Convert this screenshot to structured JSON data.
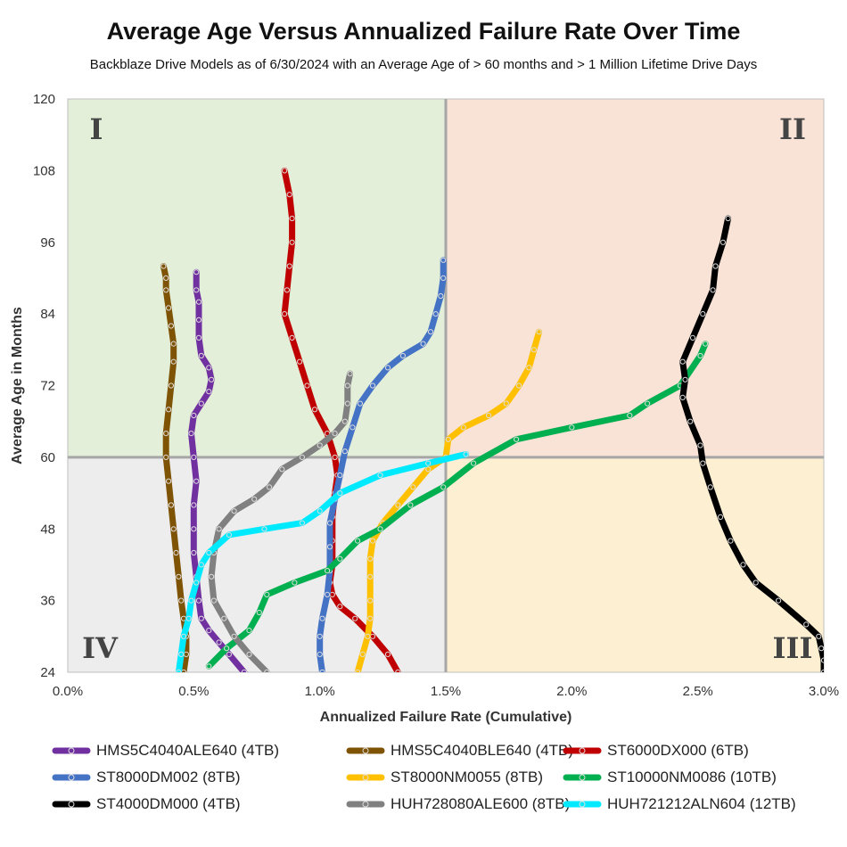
{
  "chart_data": {
    "type": "line",
    "title": "Average Age Versus  Annualized Failure Rate Over Time",
    "subtitle": "Backblaze Drive Models as of 6/30/2024 with an Average Age of > 60 months and > 1 Million Lifetime Drive Days",
    "xlabel": "Annualized Failure Rate (Cumulative)",
    "ylabel": "Average Age in Months",
    "xlim": [
      0.0,
      3.0
    ],
    "ylim": [
      24,
      120
    ],
    "x_ticks": [
      "0.0%",
      "0.5%",
      "1.0%",
      "1.5%",
      "2.0%",
      "2.5%",
      "3.0%"
    ],
    "y_ticks": [
      "24",
      "36",
      "48",
      "60",
      "72",
      "84",
      "96",
      "108",
      "120"
    ],
    "quadrants": [
      {
        "label": "I",
        "x_range": [
          0.0,
          1.5
        ],
        "y_range": [
          60,
          120
        ],
        "color": "#e3efd9"
      },
      {
        "label": "II",
        "x_range": [
          1.5,
          3.0
        ],
        "y_range": [
          60,
          120
        ],
        "color": "#f9e2d6"
      },
      {
        "label": "III",
        "x_range": [
          1.5,
          3.0
        ],
        "y_range": [
          24,
          60
        ],
        "color": "#fdf0d2"
      },
      {
        "label": "IV",
        "x_range": [
          0.0,
          1.5
        ],
        "y_range": [
          24,
          60
        ],
        "color": "#ededed"
      }
    ],
    "divider_lines": {
      "x": 1.5,
      "y": 60,
      "color": "#a6a6a6"
    },
    "series": [
      {
        "name": "HMS5C4040ALE640 (4TB)",
        "color": "#7030a0",
        "points": [
          [
            0.7,
            24
          ],
          [
            0.64,
            27
          ],
          [
            0.6,
            29
          ],
          [
            0.56,
            31
          ],
          [
            0.53,
            33
          ],
          [
            0.52,
            36
          ],
          [
            0.51,
            40
          ],
          [
            0.5,
            44
          ],
          [
            0.5,
            48
          ],
          [
            0.5,
            52
          ],
          [
            0.51,
            56
          ],
          [
            0.5,
            60
          ],
          [
            0.49,
            64
          ],
          [
            0.5,
            67
          ],
          [
            0.53,
            69
          ],
          [
            0.56,
            71
          ],
          [
            0.57,
            73
          ],
          [
            0.56,
            75
          ],
          [
            0.53,
            77
          ],
          [
            0.52,
            80
          ],
          [
            0.52,
            83
          ],
          [
            0.52,
            86
          ],
          [
            0.51,
            88
          ],
          [
            0.51,
            91
          ]
        ]
      },
      {
        "name": "HMS5C4040BLE640 (4TB)",
        "color": "#7f5304",
        "points": [
          [
            0.46,
            24
          ],
          [
            0.47,
            27
          ],
          [
            0.47,
            30
          ],
          [
            0.46,
            33
          ],
          [
            0.45,
            36
          ],
          [
            0.44,
            40
          ],
          [
            0.43,
            44
          ],
          [
            0.42,
            48
          ],
          [
            0.41,
            52
          ],
          [
            0.4,
            56
          ],
          [
            0.39,
            60
          ],
          [
            0.39,
            64
          ],
          [
            0.4,
            68
          ],
          [
            0.41,
            72
          ],
          [
            0.42,
            76
          ],
          [
            0.42,
            79
          ],
          [
            0.41,
            82
          ],
          [
            0.4,
            85
          ],
          [
            0.39,
            88
          ],
          [
            0.39,
            90
          ],
          [
            0.38,
            92
          ]
        ]
      },
      {
        "name": "ST6000DX000 (6TB)",
        "color": "#c00000",
        "points": [
          [
            1.31,
            24
          ],
          [
            1.27,
            27
          ],
          [
            1.21,
            30
          ],
          [
            1.14,
            33
          ],
          [
            1.08,
            35
          ],
          [
            1.05,
            37
          ],
          [
            1.04,
            39
          ],
          [
            1.05,
            42
          ],
          [
            1.05,
            46
          ],
          [
            1.05,
            50
          ],
          [
            1.06,
            54
          ],
          [
            1.07,
            57
          ],
          [
            1.06,
            60
          ],
          [
            1.03,
            64
          ],
          [
            0.98,
            68
          ],
          [
            0.95,
            72
          ],
          [
            0.92,
            76
          ],
          [
            0.89,
            80
          ],
          [
            0.86,
            84
          ],
          [
            0.87,
            88
          ],
          [
            0.88,
            92
          ],
          [
            0.89,
            96
          ],
          [
            0.89,
            100
          ],
          [
            0.88,
            104
          ],
          [
            0.86,
            108
          ]
        ]
      },
      {
        "name": "ST8000DM002 (8TB)",
        "color": "#4472c4",
        "points": [
          [
            1.01,
            24
          ],
          [
            1.0,
            27
          ],
          [
            1.0,
            30
          ],
          [
            1.01,
            33
          ],
          [
            1.03,
            37
          ],
          [
            1.04,
            41
          ],
          [
            1.04,
            45
          ],
          [
            1.04,
            49
          ],
          [
            1.06,
            53
          ],
          [
            1.08,
            57
          ],
          [
            1.1,
            61
          ],
          [
            1.13,
            65
          ],
          [
            1.16,
            69
          ],
          [
            1.21,
            72
          ],
          [
            1.27,
            75
          ],
          [
            1.33,
            77
          ],
          [
            1.41,
            79
          ],
          [
            1.44,
            81
          ],
          [
            1.46,
            84
          ],
          [
            1.48,
            87
          ],
          [
            1.49,
            90
          ],
          [
            1.49,
            93
          ]
        ]
      },
      {
        "name": "ST8000NM0055 (8TB)",
        "color": "#ffc000",
        "points": [
          [
            1.15,
            24
          ],
          [
            1.17,
            27
          ],
          [
            1.19,
            30
          ],
          [
            1.2,
            33
          ],
          [
            1.2,
            36
          ],
          [
            1.2,
            40
          ],
          [
            1.2,
            43
          ],
          [
            1.21,
            46
          ],
          [
            1.25,
            49
          ],
          [
            1.31,
            52
          ],
          [
            1.37,
            55
          ],
          [
            1.43,
            58
          ],
          [
            1.5,
            60
          ],
          [
            1.51,
            63
          ],
          [
            1.57,
            65
          ],
          [
            1.67,
            67
          ],
          [
            1.74,
            69
          ],
          [
            1.79,
            72
          ],
          [
            1.83,
            75
          ],
          [
            1.85,
            78
          ],
          [
            1.87,
            81
          ]
        ]
      },
      {
        "name": "ST10000NM0086 (10TB)",
        "color": "#00b050",
        "points": [
          [
            0.56,
            25
          ],
          [
            0.63,
            28
          ],
          [
            0.72,
            31
          ],
          [
            0.76,
            34
          ],
          [
            0.79,
            37
          ],
          [
            0.9,
            39
          ],
          [
            1.03,
            41
          ],
          [
            1.08,
            43
          ],
          [
            1.15,
            46
          ],
          [
            1.24,
            48
          ],
          [
            1.36,
            52
          ],
          [
            1.49,
            55
          ],
          [
            1.61,
            59
          ],
          [
            1.78,
            63
          ],
          [
            2.0,
            65
          ],
          [
            2.23,
            67
          ],
          [
            2.3,
            69
          ],
          [
            2.43,
            72
          ],
          [
            2.51,
            77
          ],
          [
            2.53,
            79
          ]
        ]
      },
      {
        "name": "ST4000DM000 (4TB)",
        "color": "#000000",
        "points": [
          [
            3.0,
            24
          ],
          [
            3.0,
            26
          ],
          [
            2.99,
            28
          ],
          [
            2.98,
            30
          ],
          [
            2.93,
            32
          ],
          [
            2.82,
            36
          ],
          [
            2.73,
            39
          ],
          [
            2.68,
            42
          ],
          [
            2.63,
            46
          ],
          [
            2.59,
            50
          ],
          [
            2.55,
            55
          ],
          [
            2.52,
            59
          ],
          [
            2.51,
            62
          ],
          [
            2.47,
            66
          ],
          [
            2.44,
            70
          ],
          [
            2.45,
            73
          ],
          [
            2.44,
            76
          ],
          [
            2.48,
            80
          ],
          [
            2.52,
            84
          ],
          [
            2.56,
            88
          ],
          [
            2.57,
            92
          ],
          [
            2.6,
            96
          ],
          [
            2.62,
            100
          ]
        ]
      },
      {
        "name": "HUH728080ALE600 (8TB)",
        "color": "#808080",
        "points": [
          [
            0.79,
            24
          ],
          [
            0.72,
            27
          ],
          [
            0.66,
            30
          ],
          [
            0.62,
            33
          ],
          [
            0.58,
            36
          ],
          [
            0.57,
            40
          ],
          [
            0.58,
            44
          ],
          [
            0.6,
            48
          ],
          [
            0.66,
            51
          ],
          [
            0.74,
            53
          ],
          [
            0.8,
            55
          ],
          [
            0.85,
            58
          ],
          [
            0.93,
            60
          ],
          [
            1.0,
            62
          ],
          [
            1.06,
            64
          ],
          [
            1.1,
            66
          ],
          [
            1.11,
            69
          ],
          [
            1.11,
            72
          ],
          [
            1.12,
            74
          ]
        ]
      },
      {
        "name": "HUH721212ALN604 (12TB)",
        "color": "#00eaff",
        "points": [
          [
            0.44,
            24
          ],
          [
            0.45,
            27
          ],
          [
            0.46,
            30
          ],
          [
            0.48,
            33
          ],
          [
            0.49,
            36
          ],
          [
            0.51,
            39
          ],
          [
            0.53,
            42
          ],
          [
            0.56,
            44
          ],
          [
            0.64,
            47
          ],
          [
            0.78,
            48
          ],
          [
            0.93,
            49
          ],
          [
            1.0,
            51
          ],
          [
            1.08,
            54
          ],
          [
            1.24,
            57
          ],
          [
            1.43,
            59
          ],
          [
            1.58,
            60.5
          ]
        ]
      }
    ]
  }
}
